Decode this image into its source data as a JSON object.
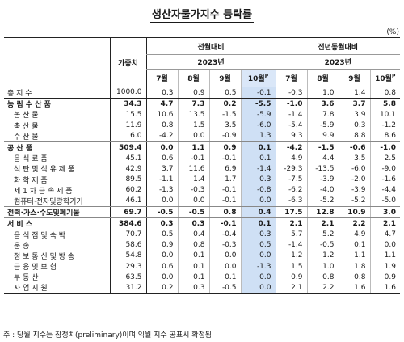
{
  "title": "생산자물가지수 등락률",
  "unit": "(%)",
  "headers": {
    "weight": "가중치",
    "mom": "전월대비",
    "yoy": "전년동월대비",
    "year": "2023년",
    "months": [
      "7월",
      "8월",
      "9월",
      "10월"
    ],
    "prelim_mark": "P"
  },
  "rows": [
    {
      "label": "총 지 수",
      "type": "total",
      "weight": "1000.0",
      "mom": [
        "0.3",
        "0.9",
        "0.5",
        "-0.1"
      ],
      "yoy": [
        "-0.3",
        "1.0",
        "1.4",
        "0.8"
      ]
    },
    {
      "label": "농 림 수 산 품",
      "type": "cat",
      "weight": "34.3",
      "mom": [
        "4.7",
        "7.3",
        "0.2",
        "-5.5"
      ],
      "yoy": [
        "-1.0",
        "3.6",
        "3.7",
        "5.8"
      ]
    },
    {
      "label": "농 산 물",
      "type": "sub",
      "weight": "15.5",
      "mom": [
        "10.6",
        "13.5",
        "-1.5",
        "-5.9"
      ],
      "yoy": [
        "-1.4",
        "7.8",
        "3.9",
        "10.1"
      ]
    },
    {
      "label": "축 산 물",
      "type": "sub",
      "weight": "11.9",
      "mom": [
        "0.8",
        "1.5",
        "3.5",
        "-6.0"
      ],
      "yoy": [
        "-5.4",
        "-5.9",
        "0.3",
        "-1.2"
      ]
    },
    {
      "label": "수 산 물",
      "type": "sub",
      "weight": "6.0",
      "mom": [
        "-4.2",
        "0.0",
        "-0.9",
        "1.3"
      ],
      "yoy": [
        "9.3",
        "9.9",
        "8.8",
        "8.6"
      ]
    },
    {
      "label": "공 산 품",
      "type": "cat",
      "weight": "509.4",
      "mom": [
        "0.0",
        "1.1",
        "0.9",
        "0.1"
      ],
      "yoy": [
        "-4.2",
        "-1.5",
        "-0.6",
        "-1.0"
      ]
    },
    {
      "label": "음 식 료 품",
      "type": "sub",
      "weight": "45.1",
      "mom": [
        "0.6",
        "-0.1",
        "-0.1",
        "0.1"
      ],
      "yoy": [
        "4.9",
        "4.4",
        "3.5",
        "2.5"
      ]
    },
    {
      "label": "석 탄 및 석 유 제 품",
      "type": "sub",
      "weight": "42.9",
      "mom": [
        "3.7",
        "11.6",
        "6.9",
        "-1.4"
      ],
      "yoy": [
        "-29.3",
        "-13.5",
        "-6.0",
        "-9.0"
      ]
    },
    {
      "label": "화 학 제 품",
      "type": "sub",
      "weight": "89.5",
      "mom": [
        "-1.1",
        "1.4",
        "1.7",
        "0.3"
      ],
      "yoy": [
        "-7.5",
        "-3.9",
        "-2.0",
        "-1.6"
      ]
    },
    {
      "label": "제 1 차 금 속 제 품",
      "type": "sub",
      "weight": "60.2",
      "mom": [
        "-1.3",
        "-0.3",
        "-0.1",
        "-0.8"
      ],
      "yoy": [
        "-6.2",
        "-4.0",
        "-3.9",
        "-4.4"
      ]
    },
    {
      "label": "컴퓨터·전자및광학기기",
      "type": "sub",
      "weight": "46.1",
      "mom": [
        "0.0",
        "0.0",
        "-0.1",
        "0.0"
      ],
      "yoy": [
        "-6.3",
        "-5.2",
        "-5.2",
        "-5.0"
      ]
    },
    {
      "label": "전력·가스·수도및폐기물",
      "type": "cat",
      "weight": "69.7",
      "mom": [
        "-0.5",
        "-0.5",
        "0.8",
        "0.4"
      ],
      "yoy": [
        "17.5",
        "12.8",
        "10.9",
        "3.0"
      ]
    },
    {
      "label": "서 비 스",
      "type": "cat",
      "weight": "384.6",
      "mom": [
        "0.3",
        "0.3",
        "-0.1",
        "0.1"
      ],
      "yoy": [
        "2.1",
        "2.1",
        "2.2",
        "2.1"
      ]
    },
    {
      "label": "음 식 점 및 숙 박",
      "type": "sub",
      "weight": "70.7",
      "mom": [
        "0.5",
        "0.4",
        "-0.4",
        "0.3"
      ],
      "yoy": [
        "5.7",
        "5.2",
        "4.9",
        "4.7"
      ]
    },
    {
      "label": "운 송",
      "type": "sub",
      "weight": "58.6",
      "mom": [
        "0.9",
        "0.8",
        "-0.3",
        "0.5"
      ],
      "yoy": [
        "-1.4",
        "-0.5",
        "0.1",
        "0.0"
      ]
    },
    {
      "label": "정 보 통 신 및 방 송",
      "type": "sub",
      "weight": "54.8",
      "mom": [
        "0.0",
        "0.1",
        "0.0",
        "0.0"
      ],
      "yoy": [
        "1.2",
        "1.2",
        "1.1",
        "1.1"
      ]
    },
    {
      "label": "금 융 및 보 험",
      "type": "sub",
      "weight": "29.3",
      "mom": [
        "0.6",
        "0.1",
        "0.0",
        "-1.3"
      ],
      "yoy": [
        "1.5",
        "1.0",
        "1.8",
        "1.9"
      ]
    },
    {
      "label": "부 동 산",
      "type": "sub",
      "weight": "63.5",
      "mom": [
        "0.0",
        "0.1",
        "0.1",
        "0.0"
      ],
      "yoy": [
        "0.9",
        "0.8",
        "0.8",
        "0.9"
      ]
    },
    {
      "label": "사 업 지 원",
      "type": "sub",
      "weight": "31.2",
      "mom": [
        "0.2",
        "0.3",
        "-0.5",
        "0.0"
      ],
      "yoy": [
        "2.1",
        "2.2",
        "1.6",
        "1.6"
      ]
    }
  ],
  "note": "주 : 당월 지수는 잠정치(preliminary)이며 익월 지수 공표시 확정됨"
}
